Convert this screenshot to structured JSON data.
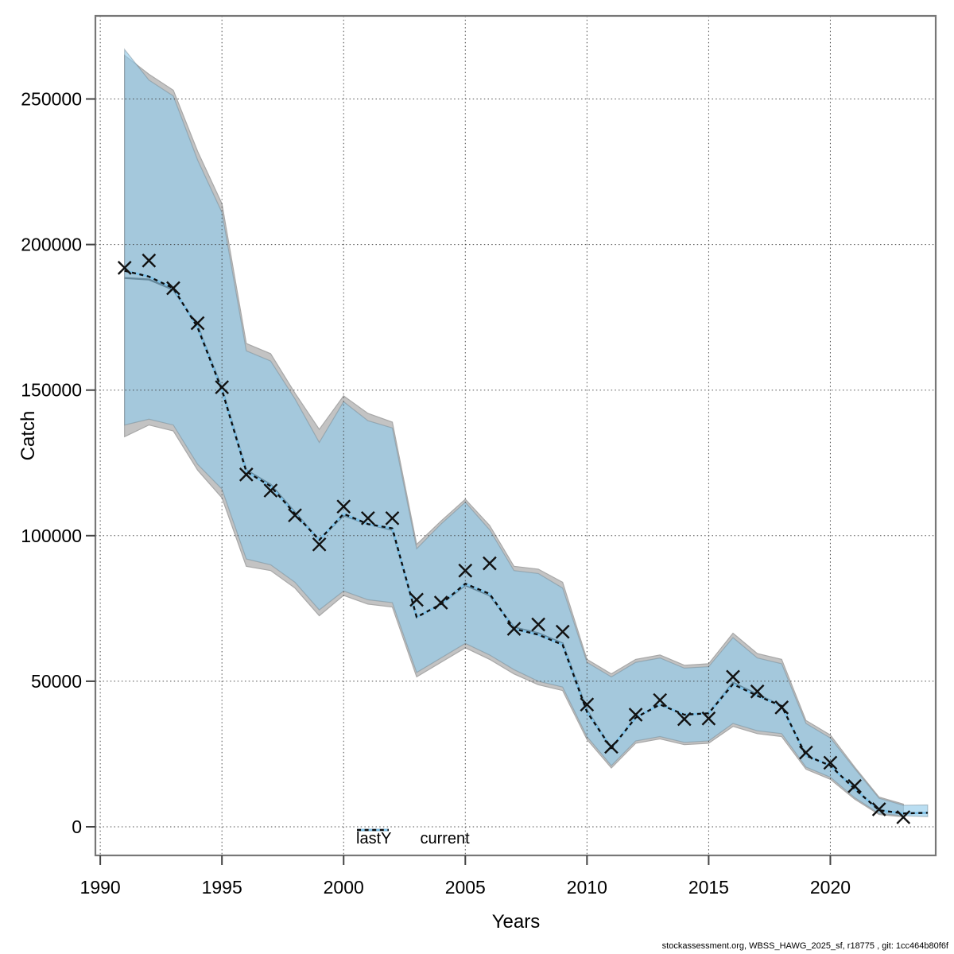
{
  "footer": {
    "text": "stockassessment.org, WBSS_HAWG_2025_sf, r18775 , git: 1cc464b80f6f"
  },
  "chart_data": {
    "type": "area",
    "title": "",
    "xlabel": "Years",
    "ylabel": "Catch",
    "xlim": [
      1989.8,
      2024.33
    ],
    "ylim": [
      0,
      280000
    ],
    "x_ticks": [
      1990,
      1995,
      2000,
      2005,
      2010,
      2015,
      2020
    ],
    "y_ticks": [
      0,
      50000,
      100000,
      150000,
      200000,
      250000
    ],
    "grid": true,
    "legend": [
      {
        "label": "lastY",
        "style": "solid-black-line"
      },
      {
        "label": "current",
        "style": "dotted-blue-line"
      }
    ],
    "colors": {
      "lastY_band": "#c3c3c3",
      "lastY_band_edge": "#a8a8a8",
      "lastY_line": "#1a1a1a",
      "current_band": "rgba(146,203,234,0.63)",
      "current_band_edge": "rgba(110,130,142,0.45)",
      "current_line_under": "#7fc2e8",
      "current_line_dash": "#0d0d0d",
      "marker": "#111111",
      "grid": "#3a3a3a",
      "box": "#777777",
      "tick": "#444444"
    },
    "series": [
      {
        "name": "lastY_band",
        "type": "band",
        "years": [
          1991,
          1992,
          1993,
          1994,
          1995,
          1996,
          1997,
          1998,
          1999,
          2000,
          2001,
          2002,
          2003,
          2004,
          2005,
          2006,
          2007,
          2008,
          2009,
          2010,
          2011,
          2012,
          2013,
          2014,
          2015,
          2016,
          2017,
          2018,
          2019,
          2020,
          2021,
          2022,
          2023
        ],
        "hi": [
          265000,
          258500,
          253000,
          232000,
          214000,
          166000,
          162500,
          149000,
          136500,
          148000,
          142000,
          139000,
          97000,
          105000,
          112500,
          103500,
          89500,
          88500,
          84000,
          57500,
          52500,
          57500,
          59000,
          55500,
          56000,
          66500,
          59500,
          57500,
          36500,
          31500,
          20500,
          10200,
          7800
        ],
        "lo": [
          134000,
          138000,
          136000,
          122500,
          113000,
          89500,
          88000,
          82000,
          72500,
          79500,
          76500,
          75500,
          51500,
          56500,
          61500,
          57500,
          52500,
          48800,
          46800,
          30000,
          20200,
          28700,
          30200,
          28200,
          28700,
          34500,
          32000,
          31000,
          19800,
          16300,
          9500,
          4200,
          3400
        ]
      },
      {
        "name": "lastY",
        "type": "line",
        "years": [
          1991,
          1992,
          1993,
          1994,
          1995,
          1996,
          1997,
          1998,
          1999,
          2000,
          2001,
          2002,
          2003,
          2004,
          2005,
          2006,
          2007,
          2008,
          2009,
          2010,
          2011,
          2012,
          2013,
          2014,
          2015,
          2016,
          2017,
          2018,
          2019,
          2020,
          2021,
          2022,
          2023
        ],
        "values": [
          188500,
          188000,
          184500,
          172000,
          150500,
          122500,
          117500,
          108000,
          98500,
          107000,
          104000,
          102000,
          72000,
          76500,
          83000,
          79500,
          68500,
          66500,
          63000,
          40000,
          27000,
          37500,
          42000,
          38500,
          39000,
          49500,
          45500,
          41500,
          24500,
          21000,
          13000,
          5700,
          4500
        ]
      },
      {
        "name": "current_band",
        "type": "band",
        "years": [
          1991,
          1992,
          1993,
          1994,
          1995,
          1996,
          1997,
          1998,
          1999,
          2000,
          2001,
          2002,
          2003,
          2004,
          2005,
          2006,
          2007,
          2008,
          2009,
          2010,
          2011,
          2012,
          2013,
          2014,
          2015,
          2016,
          2017,
          2018,
          2019,
          2020,
          2021,
          2022,
          2023,
          2024
        ],
        "hi": [
          267000,
          256500,
          251000,
          229000,
          211000,
          163500,
          160000,
          147000,
          132000,
          146000,
          139500,
          137000,
          95500,
          104000,
          111500,
          102000,
          88000,
          87000,
          82000,
          56500,
          51500,
          56500,
          58000,
          54500,
          55000,
          65000,
          58000,
          56000,
          35500,
          30500,
          20000,
          9800,
          7400,
          7500
        ],
        "lo": [
          138000,
          140000,
          138000,
          124500,
          116000,
          92000,
          90000,
          84000,
          74500,
          81000,
          78000,
          77000,
          53000,
          58000,
          63000,
          59000,
          54000,
          50000,
          48000,
          31000,
          21000,
          29500,
          31000,
          29000,
          29500,
          35500,
          33000,
          32000,
          20500,
          17000,
          10000,
          4600,
          3800,
          3500
        ]
      },
      {
        "name": "current",
        "type": "line",
        "years": [
          1991,
          1992,
          1993,
          1994,
          1995,
          1996,
          1997,
          1998,
          1999,
          2000,
          2001,
          2002,
          2003,
          2004,
          2005,
          2006,
          2007,
          2008,
          2009,
          2010,
          2011,
          2012,
          2013,
          2014,
          2015,
          2016,
          2017,
          2018,
          2019,
          2020,
          2021,
          2022,
          2023,
          2024
        ],
        "values": [
          191000,
          189000,
          185000,
          171500,
          150000,
          122000,
          117000,
          107500,
          98500,
          107500,
          104000,
          102500,
          72000,
          76500,
          83500,
          80000,
          68000,
          66000,
          62500,
          39500,
          27000,
          37500,
          42000,
          38500,
          39000,
          49000,
          45000,
          41500,
          24500,
          21000,
          13000,
          5700,
          4600,
          4800
        ]
      },
      {
        "name": "observations",
        "type": "scatter",
        "marker": "x",
        "years": [
          1991,
          1992,
          1993,
          1994,
          1995,
          1996,
          1997,
          1998,
          1999,
          2000,
          2001,
          2002,
          2003,
          2004,
          2005,
          2006,
          2007,
          2008,
          2009,
          2010,
          2011,
          2012,
          2013,
          2014,
          2015,
          2016,
          2017,
          2018,
          2019,
          2020,
          2021,
          2022,
          2023
        ],
        "values": [
          192000,
          194500,
          185000,
          173000,
          151000,
          121000,
          115500,
          107000,
          97000,
          110000,
          106000,
          106000,
          78000,
          77000,
          88000,
          90500,
          68000,
          69500,
          67000,
          42000,
          27500,
          38500,
          43500,
          37000,
          37200,
          51500,
          46500,
          41000,
          25500,
          22000,
          14000,
          6000,
          3300
        ]
      }
    ]
  }
}
